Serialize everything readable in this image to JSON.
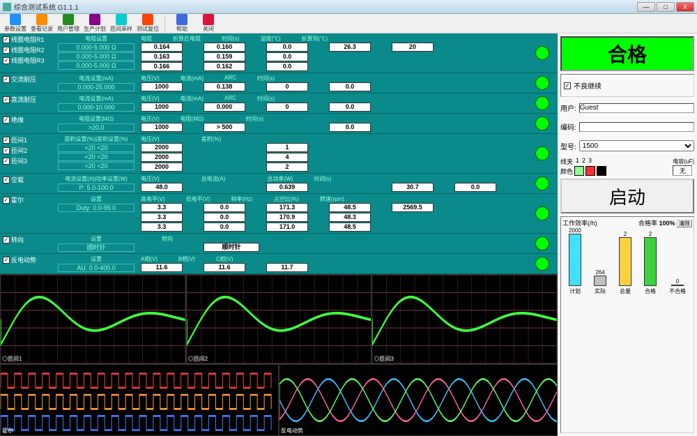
{
  "window": {
    "title": "综合测试系统 G1.1.1",
    "min": "—",
    "max": "□",
    "close": "X"
  },
  "toolbar": [
    {
      "label": "参数设置",
      "icon": "#1e90ff"
    },
    {
      "label": "查看记录",
      "icon": "#ff8c00"
    },
    {
      "label": "用户管理",
      "icon": "#228b22"
    },
    {
      "label": "生产计划",
      "icon": "#8b008b"
    },
    {
      "label": "匝间采样",
      "icon": "#00ced1"
    },
    {
      "label": "测试复位",
      "icon": "#ff4500"
    },
    {
      "sep": true
    },
    {
      "label": "帮助",
      "icon": "#4169e1"
    },
    {
      "label": "关闭",
      "icon": "#dc143c"
    }
  ],
  "rows": [
    {
      "checks": [
        {
          "l": "线圈电阻R1",
          "c": true
        },
        {
          "l": "线圈电阻R2",
          "c": true
        },
        {
          "l": "线圈电阻R3",
          "c": true
        }
      ],
      "settings": {
        "head": "电阻设置",
        "vals": [
          "0.000-5.000    Ω",
          "0.000-5.000    Ω",
          "0.000-5.000    Ω"
        ]
      },
      "cols": [
        {
          "h": "电阻",
          "v": [
            "0.164",
            "0.163",
            "0.166"
          ]
        },
        {
          "h": "折算后电阻",
          "v": [
            "0.160",
            "0.159",
            "0.162"
          ]
        },
        {
          "h": "时间(s)",
          "v": [
            "0.0",
            "0.0",
            "0.0"
          ]
        },
        {
          "h": "温度(℃)",
          "v": [
            "26.3"
          ]
        },
        {
          "h": "折算到(℃)",
          "v": [
            "20"
          ]
        }
      ]
    },
    {
      "checks": [
        {
          "l": "交流耐压",
          "c": true
        }
      ],
      "settings": {
        "head": "电流设置(mA)",
        "vals": [
          "0.000-25.000"
        ]
      },
      "cols": [
        {
          "h": "电压(V)",
          "v": [
            "1000"
          ]
        },
        {
          "h": "电流(mA)",
          "v": [
            "0.138"
          ]
        },
        {
          "h": "ARC",
          "v": [
            "0"
          ]
        },
        {
          "h": "时间(s)",
          "v": [
            "0.0"
          ]
        }
      ]
    },
    {
      "checks": [
        {
          "l": "直流耐压",
          "c": true
        }
      ],
      "settings": {
        "head": "电流设置(mA)",
        "vals": [
          "0.000-10.000"
        ]
      },
      "cols": [
        {
          "h": "电压(V)",
          "v": [
            "1000"
          ]
        },
        {
          "h": "电流(mA)",
          "v": [
            "0.000"
          ]
        },
        {
          "h": "ARC",
          "v": [
            "0"
          ]
        },
        {
          "h": "时间(s)",
          "v": [
            "0.0"
          ]
        }
      ]
    },
    {
      "checks": [
        {
          "l": "绝缘",
          "c": true
        }
      ],
      "settings": {
        "head": "电阻设置(MΩ)",
        "vals": [
          ">20.0"
        ]
      },
      "cols": [
        {
          "h": "电压(V)",
          "v": [
            "1000"
          ]
        },
        {
          "h": "电阻(MΩ)",
          "v": [
            "> 500"
          ]
        },
        {
          "h": "",
          "v": []
        },
        {
          "h": "时间(s)",
          "v": [
            "0.0"
          ]
        }
      ]
    },
    {
      "checks": [
        {
          "l": "匝间1",
          "c": true
        },
        {
          "l": "匝间2",
          "c": true
        },
        {
          "l": "匝间3",
          "c": true
        }
      ],
      "settings": {
        "head": "面积设置(%)|差积设置(%)",
        "vals": [
          "<20   <20",
          "<20   <20",
          "<20   <20"
        ]
      },
      "cols": [
        {
          "h": "电压(V)",
          "v": [
            "2000",
            "2000",
            "2000"
          ]
        },
        {
          "h": "",
          "v": []
        },
        {
          "h": "差积(%)",
          "v": [
            "1",
            "4",
            "2"
          ]
        }
      ]
    },
    {
      "checks": [
        {
          "l": "空载",
          "c": true
        }
      ],
      "settings": {
        "head": "电流设置(A)|功率设置(W)",
        "vals": [
          "P: 5.0-100.0"
        ]
      },
      "cols": [
        {
          "h": "电压(V)",
          "v": [
            "48.0"
          ]
        },
        {
          "h": "",
          "v": []
        },
        {
          "h": "总电流(A)",
          "v": [
            "0.639"
          ]
        },
        {
          "h": "",
          "v": []
        },
        {
          "h": "总功率(W)",
          "v": [
            "30.7"
          ]
        },
        {
          "h": "时间(s)",
          "v": [
            "0.0"
          ]
        }
      ]
    },
    {
      "checks": [
        {
          "l": "霍尔",
          "c": true
        }
      ],
      "settings": {
        "head": "设置",
        "vals": [
          "Duty: 0.0-99.0"
        ]
      },
      "cols": [
        {
          "h": "高电平(V)",
          "v": [
            "3.3",
            "3.3",
            "3.3"
          ]
        },
        {
          "h": "低电平(V)",
          "v": [
            "0.0",
            "0.0",
            "0.0"
          ]
        },
        {
          "h": "频率(Hz)",
          "v": [
            "171.3",
            "170.9",
            "171.0"
          ]
        },
        {
          "h": "占空比(%)",
          "v": [
            "48.5",
            "48.3",
            "48.5"
          ]
        },
        {
          "h": "转速(rpm)",
          "v": [
            "2569.5"
          ]
        }
      ]
    },
    {
      "checks": [
        {
          "l": "转向",
          "c": true
        }
      ],
      "settings": {
        "head": "设置",
        "vals": [
          "顺时针"
        ]
      },
      "cols": [
        {
          "h": "",
          "v": []
        },
        {
          "h": "转向",
          "v": [
            "顺时针"
          ],
          "wide": true
        }
      ]
    },
    {
      "checks": [
        {
          "l": "反电动势",
          "c": true
        }
      ],
      "settings": {
        "head": "设置",
        "vals": [
          "AU: 0.0-400.0"
        ]
      },
      "cols": [
        {
          "h": "A相(V)",
          "v": [
            "11.6"
          ]
        },
        {
          "h": "B相(V)",
          "v": [
            "11.6"
          ]
        },
        {
          "h": "C相(V)",
          "v": [
            "11.7"
          ]
        }
      ]
    }
  ],
  "chartlabels": [
    "◎匝间1",
    "◎匝间2",
    "◎匝间3",
    "霍尔",
    "反电动势"
  ],
  "result": {
    "text": "合格",
    "color": "#00ff00"
  },
  "continue": {
    "label": "不良继续",
    "checked": true
  },
  "user": {
    "label": "用户:",
    "value": "Guest"
  },
  "code": {
    "label": "编码:",
    "value": ""
  },
  "model": {
    "label": "型号:",
    "value": "1500"
  },
  "wires": {
    "label": "线夹",
    "nums": [
      "1",
      "2",
      "3"
    ],
    "colorlabel": "颜色",
    "colors": [
      "#90ff90",
      "#ff3030",
      "#000000"
    ]
  },
  "cap": {
    "label": "电容(uF)",
    "value": "无"
  },
  "start": "启动",
  "stats": {
    "eff": "工作效率(/h)",
    "pass": "合格率",
    "passval": "100%",
    "clear": "清除",
    "bars": [
      {
        "label": "计划",
        "val": "2000",
        "h": 75,
        "color": "#40e0ff"
      },
      {
        "label": "实际",
        "val": "264",
        "h": 15,
        "color": "#c0c0c0"
      },
      {
        "label": "总量",
        "val": "2",
        "h": 70,
        "color": "#ffd040"
      },
      {
        "label": "合格",
        "val": "2",
        "h": 70,
        "color": "#40d040"
      },
      {
        "label": "不合格",
        "val": "0",
        "h": 2,
        "color": "#ff4040"
      }
    ]
  },
  "waves": {
    "top_stroke": "#40ff40",
    "top_grid": "#603030",
    "mid_colors": [
      "#ff4040",
      "#ffa040",
      "#4080ff"
    ],
    "bot_colors": [
      "#40c0ff",
      "#ff60a0",
      "#60ff60"
    ]
  }
}
